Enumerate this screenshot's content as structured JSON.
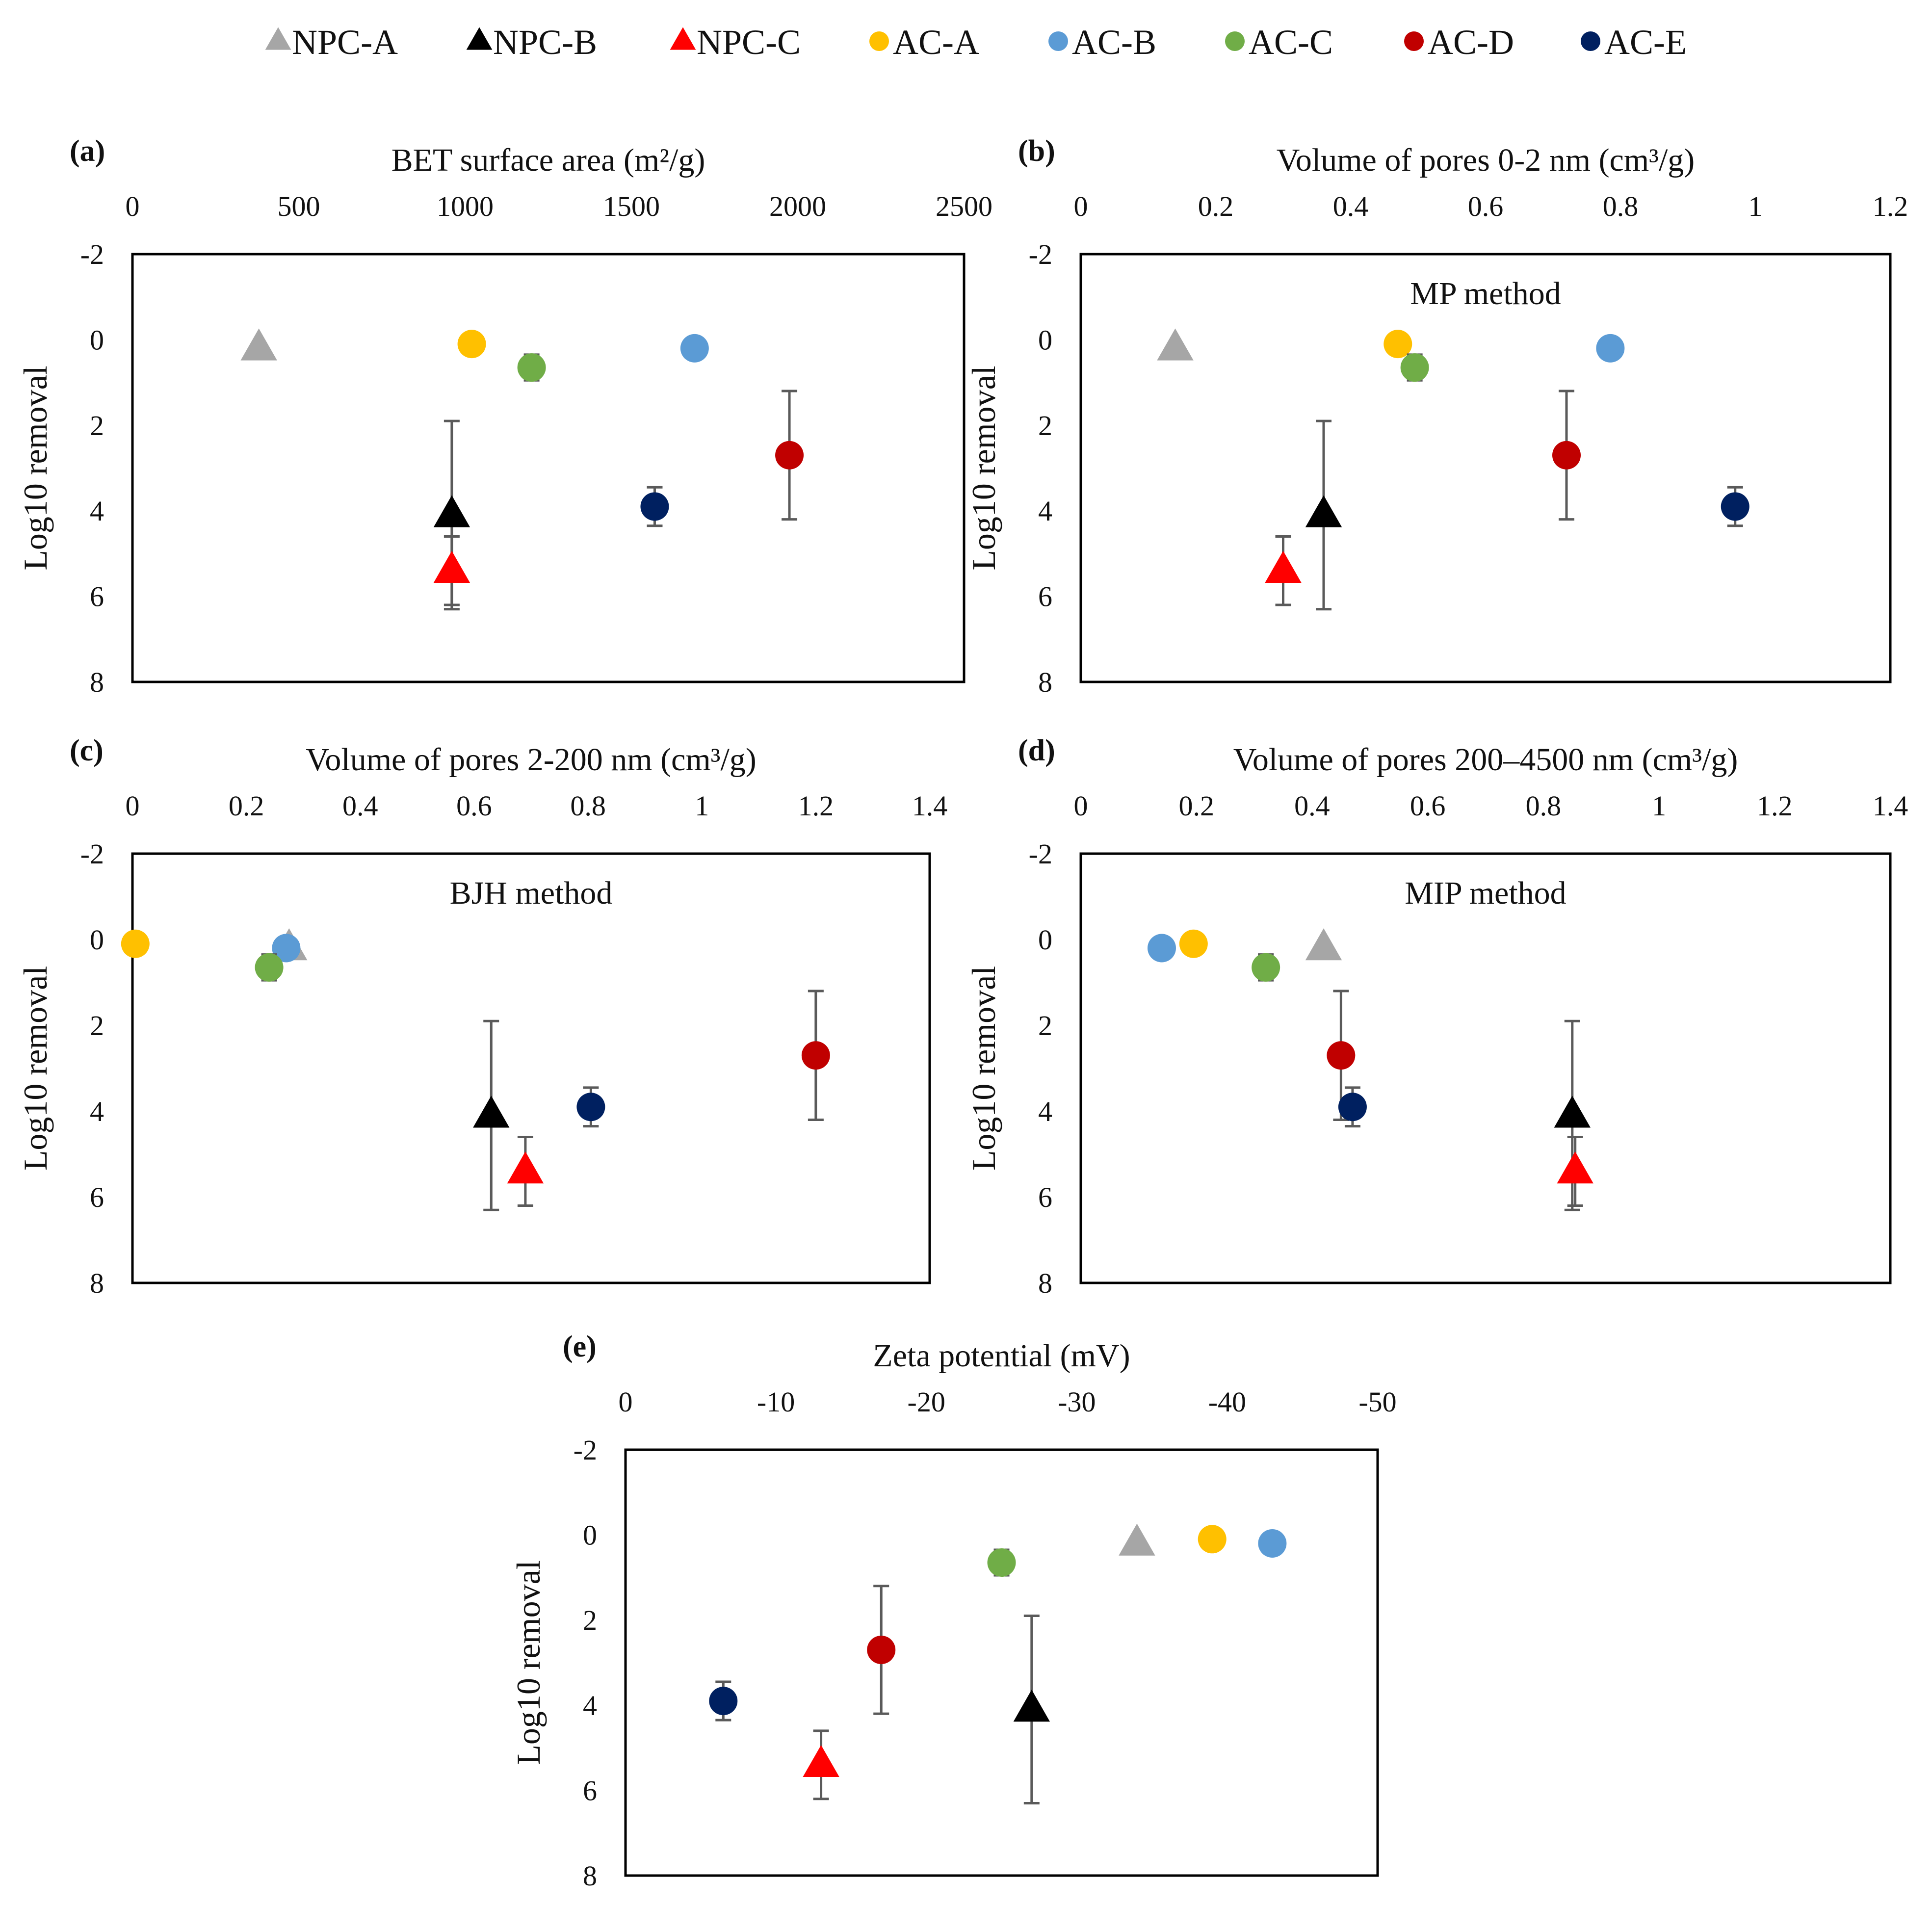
{
  "legend": [
    {
      "name": "NPC-A",
      "shape": "triangle",
      "color": "#a6a6a6"
    },
    {
      "name": "NPC-B",
      "shape": "triangle",
      "color": "#000000"
    },
    {
      "name": "NPC-C",
      "shape": "triangle",
      "color": "#ff0000"
    },
    {
      "name": "AC-A",
      "shape": "circle",
      "color": "#ffc000"
    },
    {
      "name": "AC-B",
      "shape": "circle",
      "color": "#5b9bd5"
    },
    {
      "name": "AC-C",
      "shape": "circle",
      "color": "#70ad47"
    },
    {
      "name": "AC-D",
      "shape": "circle",
      "color": "#c00000"
    },
    {
      "name": "AC-E",
      "shape": "circle",
      "color": "#002060"
    }
  ],
  "chart_data": [
    {
      "panel": "(a)",
      "type": "scatter",
      "xlabel": "BET surface area (m²/g)",
      "ylabel": "Log10 removal",
      "xlim": [
        0,
        2500
      ],
      "xticks": [
        0,
        500,
        1000,
        1500,
        2000,
        2500
      ],
      "ylim": [
        -2,
        8
      ],
      "yticks": [
        -2,
        0,
        2,
        4,
        6,
        8
      ],
      "method": "",
      "points": [
        {
          "series": "NPC-A",
          "x": 380,
          "y": 0.2,
          "err": 0.1
        },
        {
          "series": "NPC-B",
          "x": 960,
          "y": 4.1,
          "err": 2.2
        },
        {
          "series": "NPC-C",
          "x": 960,
          "y": 5.4,
          "err": 0.8
        },
        {
          "series": "AC-A",
          "x": 1020,
          "y": 0.1,
          "err": 0
        },
        {
          "series": "AC-B",
          "x": 1690,
          "y": 0.2,
          "err": 0
        },
        {
          "series": "AC-C",
          "x": 1200,
          "y": 0.65,
          "err": 0.3
        },
        {
          "series": "AC-D",
          "x": 1975,
          "y": 2.7,
          "err": 1.5
        },
        {
          "series": "AC-E",
          "x": 1570,
          "y": 3.9,
          "err": 0.45
        }
      ]
    },
    {
      "panel": "(b)",
      "type": "scatter",
      "xlabel": "Volume of pores 0-2 nm (cm³/g)",
      "ylabel": "Log10 removal",
      "xlim": [
        0,
        1.2
      ],
      "xticks": [
        0,
        0.2,
        0.4,
        0.6,
        0.8,
        1,
        1.2
      ],
      "ylim": [
        -2,
        8
      ],
      "yticks": [
        -2,
        0,
        2,
        4,
        6,
        8
      ],
      "method": "MP method",
      "points": [
        {
          "series": "NPC-A",
          "x": 0.14,
          "y": 0.2,
          "err": 0.1
        },
        {
          "series": "NPC-B",
          "x": 0.36,
          "y": 4.1,
          "err": 2.2
        },
        {
          "series": "NPC-C",
          "x": 0.3,
          "y": 5.4,
          "err": 0.8
        },
        {
          "series": "AC-A",
          "x": 0.47,
          "y": 0.1,
          "err": 0
        },
        {
          "series": "AC-B",
          "x": 0.785,
          "y": 0.2,
          "err": 0
        },
        {
          "series": "AC-C",
          "x": 0.495,
          "y": 0.65,
          "err": 0.3
        },
        {
          "series": "AC-D",
          "x": 0.72,
          "y": 2.7,
          "err": 1.5
        },
        {
          "series": "AC-E",
          "x": 0.97,
          "y": 3.9,
          "err": 0.45
        }
      ]
    },
    {
      "panel": "(c)",
      "type": "scatter",
      "xlabel": "Volume of pores 2-200 nm (cm³/g)",
      "ylabel": "Log10 removal",
      "xlim": [
        0,
        1.4
      ],
      "xticks": [
        0,
        0.2,
        0.4,
        0.6,
        0.8,
        1,
        1.2,
        1.4
      ],
      "ylim": [
        -2,
        8
      ],
      "yticks": [
        -2,
        0,
        2,
        4,
        6,
        8
      ],
      "method": "BJH method",
      "points": [
        {
          "series": "NPC-A",
          "x": 0.275,
          "y": 0.2,
          "err": 0.1
        },
        {
          "series": "NPC-B",
          "x": 0.63,
          "y": 4.1,
          "err": 2.2
        },
        {
          "series": "NPC-C",
          "x": 0.69,
          "y": 5.4,
          "err": 0.8
        },
        {
          "series": "AC-A",
          "x": 0.005,
          "y": 0.1,
          "err": 0
        },
        {
          "series": "AC-B",
          "x": 0.27,
          "y": 0.2,
          "err": 0
        },
        {
          "series": "AC-C",
          "x": 0.24,
          "y": 0.65,
          "err": 0.3
        },
        {
          "series": "AC-D",
          "x": 1.2,
          "y": 2.7,
          "err": 1.5
        },
        {
          "series": "AC-E",
          "x": 0.805,
          "y": 3.9,
          "err": 0.45
        }
      ]
    },
    {
      "panel": "(d)",
      "type": "scatter",
      "xlabel": "Volume of pores 200–4500 nm (cm³/g)",
      "ylabel": "Log10 removal",
      "xlim": [
        0,
        1.4
      ],
      "xticks": [
        0,
        0.2,
        0.4,
        0.6,
        0.8,
        1,
        1.2,
        1.4
      ],
      "ylim": [
        -2,
        8
      ],
      "yticks": [
        -2,
        0,
        2,
        4,
        6,
        8
      ],
      "method": "MIP method",
      "points": [
        {
          "series": "NPC-A",
          "x": 0.42,
          "y": 0.2,
          "err": 0.1
        },
        {
          "series": "NPC-B",
          "x": 0.85,
          "y": 4.1,
          "err": 2.2
        },
        {
          "series": "NPC-C",
          "x": 0.855,
          "y": 5.4,
          "err": 0.8
        },
        {
          "series": "AC-A",
          "x": 0.195,
          "y": 0.1,
          "err": 0
        },
        {
          "series": "AC-B",
          "x": 0.14,
          "y": 0.2,
          "err": 0
        },
        {
          "series": "AC-C",
          "x": 0.32,
          "y": 0.65,
          "err": 0.3
        },
        {
          "series": "AC-D",
          "x": 0.45,
          "y": 2.7,
          "err": 1.5
        },
        {
          "series": "AC-E",
          "x": 0.47,
          "y": 3.9,
          "err": 0.45
        }
      ]
    },
    {
      "panel": "(e)",
      "type": "scatter",
      "xlabel": "Zeta potential (mV)",
      "ylabel": "Log10 removal",
      "xlim": [
        0,
        -50
      ],
      "xticks": [
        0,
        -10,
        -20,
        -30,
        -40,
        -50
      ],
      "ylim": [
        -2,
        8
      ],
      "yticks": [
        -2,
        0,
        2,
        4,
        6,
        8
      ],
      "method": "",
      "points": [
        {
          "series": "NPC-A",
          "x": -34,
          "y": 0.2,
          "err": 0.1
        },
        {
          "series": "NPC-B",
          "x": -27,
          "y": 4.1,
          "err": 2.2
        },
        {
          "series": "NPC-C",
          "x": -13,
          "y": 5.4,
          "err": 0.8
        },
        {
          "series": "AC-A",
          "x": -39,
          "y": 0.1,
          "err": 0
        },
        {
          "series": "AC-B",
          "x": -43,
          "y": 0.2,
          "err": 0
        },
        {
          "series": "AC-C",
          "x": -25,
          "y": 0.65,
          "err": 0.3
        },
        {
          "series": "AC-D",
          "x": -17,
          "y": 2.7,
          "err": 1.5
        },
        {
          "series": "AC-E",
          "x": -6.5,
          "y": 3.9,
          "err": 0.45
        }
      ]
    }
  ]
}
